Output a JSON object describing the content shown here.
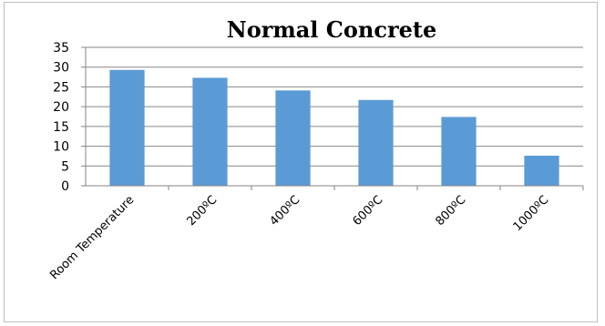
{
  "chart_data": {
    "type": "bar",
    "title": "Normal Concrete",
    "categories": [
      "Room Temperature",
      "200ºC",
      "400ºC",
      "600ºC",
      "800ºC",
      "1000ºC"
    ],
    "values": [
      29.3,
      27.3,
      24.1,
      21.7,
      17.4,
      7.6
    ],
    "ylim": [
      0,
      35
    ],
    "yticks": [
      0,
      5,
      10,
      15,
      20,
      25,
      30,
      35
    ],
    "grid": true,
    "legend": "none",
    "bar_color": "#5b9bd5"
  }
}
